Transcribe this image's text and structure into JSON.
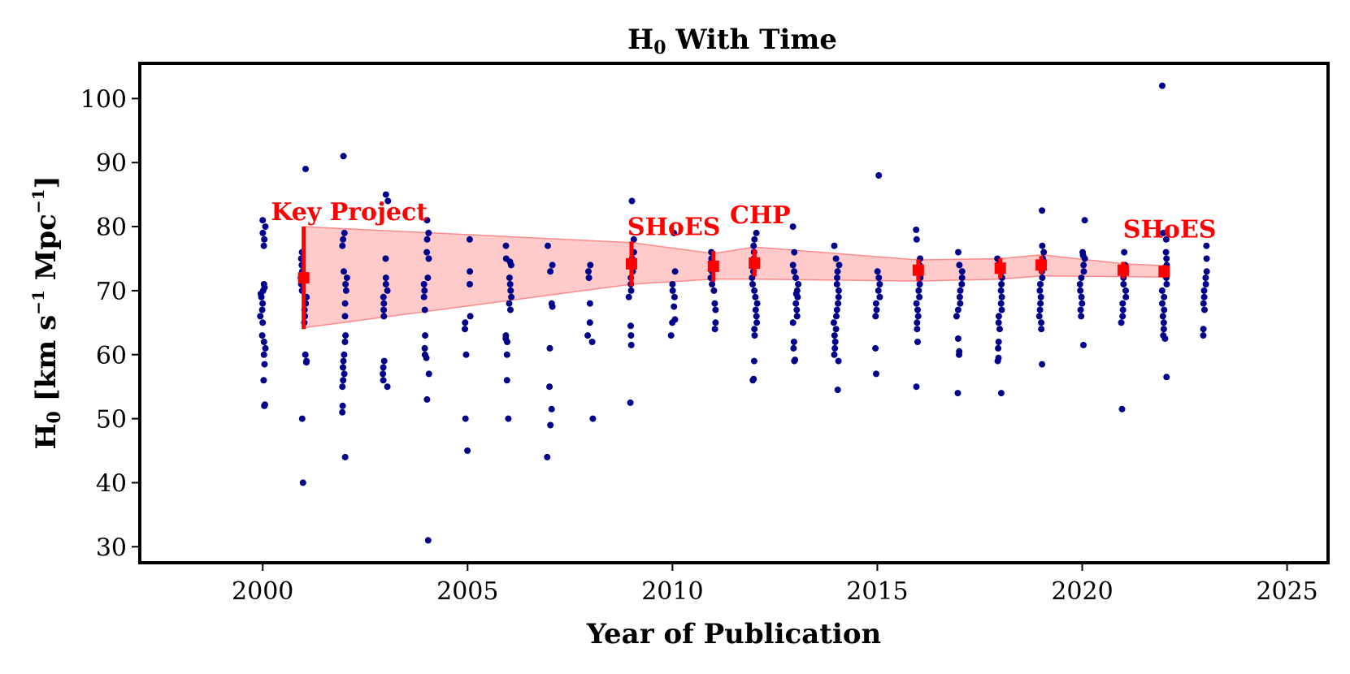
{
  "chart_data": {
    "type": "scatter",
    "title_main": "H",
    "title_sub": "0",
    "title_rest": " With Time",
    "xlabel": "Year of Publication",
    "ylabel_main": "H",
    "ylabel_sub": "0",
    "ylabel_rest": " [km s",
    "ylabel_exp1": "−1",
    "ylabel_mid": " Mpc",
    "ylabel_exp2": "−1",
    "ylabel_end": "]",
    "xlim": [
      1997,
      2026
    ],
    "ylim": [
      27.5,
      105.5
    ],
    "x_ticks": [
      2000,
      2005,
      2010,
      2015,
      2020,
      2025
    ],
    "x_tick_labels": [
      "2000",
      "2005",
      "2010",
      "2015",
      "2020",
      "2025"
    ],
    "y_ticks": [
      30,
      40,
      50,
      60,
      70,
      80,
      90,
      100
    ],
    "y_tick_labels": [
      "30",
      "40",
      "50",
      "60",
      "70",
      "80",
      "90",
      "100"
    ],
    "colors": {
      "points": "#00008b",
      "highlight": "#ff0000",
      "band": "#ffb3b3"
    },
    "band": {
      "x": [
        2001,
        2009,
        2011,
        2012,
        2016,
        2018,
        2019,
        2021,
        2022
      ],
      "upper": [
        80,
        77.5,
        75.8,
        76.8,
        74.8,
        75.0,
        75.6,
        74.2,
        73.9
      ],
      "lower": [
        64.2,
        71.0,
        71.8,
        71.8,
        71.5,
        71.8,
        72.3,
        72.2,
        72.1
      ]
    },
    "highlights": [
      {
        "x": 2001,
        "y": 72.0,
        "err": 8.0
      },
      {
        "x": 2009,
        "y": 74.2,
        "err": 3.5
      },
      {
        "x": 2011,
        "y": 73.8,
        "err": 2.4
      },
      {
        "x": 2012,
        "y": 74.3,
        "err": 2.1
      },
      {
        "x": 2016,
        "y": 73.2,
        "err": 1.7
      },
      {
        "x": 2018,
        "y": 73.5,
        "err": 1.6
      },
      {
        "x": 2019,
        "y": 74.0,
        "err": 1.4
      },
      {
        "x": 2021,
        "y": 73.2,
        "err": 1.3
      },
      {
        "x": 2022,
        "y": 73.0,
        "err": 1.0
      }
    ],
    "annotations": [
      {
        "text": "Key Project",
        "x": 2000.2,
        "y": 81.0
      },
      {
        "text": "SHoES",
        "x": 2008.9,
        "y": 78.7
      },
      {
        "text": "CHP",
        "x": 2011.4,
        "y": 80.5
      },
      {
        "text": "SHoES",
        "x": 2021.0,
        "y": 78.3
      }
    ],
    "points": [
      [
        2000,
        81
      ],
      [
        2000,
        80
      ],
      [
        2000,
        79
      ],
      [
        2000,
        78
      ],
      [
        2000,
        77
      ],
      [
        2000,
        71
      ],
      [
        2000,
        70.5
      ],
      [
        2000,
        70
      ],
      [
        2000,
        69.5
      ],
      [
        2000,
        69
      ],
      [
        2000,
        68
      ],
      [
        2000,
        67
      ],
      [
        2000,
        66
      ],
      [
        2000,
        65
      ],
      [
        2000,
        63
      ],
      [
        2000,
        62
      ],
      [
        2000,
        61
      ],
      [
        2000,
        60
      ],
      [
        2000,
        58.5
      ],
      [
        2000,
        56
      ],
      [
        2000,
        52.2
      ],
      [
        2000,
        52
      ],
      [
        2001,
        89
      ],
      [
        2001,
        76
      ],
      [
        2001,
        75
      ],
      [
        2001,
        74
      ],
      [
        2001,
        73
      ],
      [
        2001,
        72
      ],
      [
        2001,
        71
      ],
      [
        2001,
        70
      ],
      [
        2001,
        69
      ],
      [
        2001,
        68
      ],
      [
        2001,
        67
      ],
      [
        2001,
        66
      ],
      [
        2001,
        65
      ],
      [
        2001,
        60
      ],
      [
        2001,
        59
      ],
      [
        2001,
        58.8
      ],
      [
        2001,
        50
      ],
      [
        2001,
        40
      ],
      [
        2002,
        91
      ],
      [
        2002,
        79
      ],
      [
        2002,
        78
      ],
      [
        2002,
        77
      ],
      [
        2002,
        73
      ],
      [
        2002,
        72
      ],
      [
        2002,
        71
      ],
      [
        2002,
        70
      ],
      [
        2002,
        68
      ],
      [
        2002,
        66
      ],
      [
        2002,
        63
      ],
      [
        2002,
        62
      ],
      [
        2002,
        60
      ],
      [
        2002,
        59
      ],
      [
        2002,
        58
      ],
      [
        2002,
        57
      ],
      [
        2002,
        56
      ],
      [
        2002,
        55
      ],
      [
        2002,
        52
      ],
      [
        2002,
        51
      ],
      [
        2002,
        44
      ],
      [
        2003,
        85
      ],
      [
        2003,
        84
      ],
      [
        2003,
        75
      ],
      [
        2003,
        72
      ],
      [
        2003,
        71
      ],
      [
        2003,
        70
      ],
      [
        2003,
        69
      ],
      [
        2003,
        68
      ],
      [
        2003,
        67
      ],
      [
        2003,
        66
      ],
      [
        2003,
        59
      ],
      [
        2003,
        58
      ],
      [
        2003,
        57
      ],
      [
        2003,
        56
      ],
      [
        2003,
        55
      ],
      [
        2004,
        81
      ],
      [
        2004,
        79
      ],
      [
        2004,
        78
      ],
      [
        2004,
        76
      ],
      [
        2004,
        75
      ],
      [
        2004,
        72
      ],
      [
        2004,
        71
      ],
      [
        2004,
        70
      ],
      [
        2004,
        69
      ],
      [
        2004,
        67
      ],
      [
        2004,
        63
      ],
      [
        2004,
        61
      ],
      [
        2004,
        60
      ],
      [
        2004,
        59.5
      ],
      [
        2004,
        57
      ],
      [
        2004,
        53
      ],
      [
        2004,
        31
      ],
      [
        2005,
        78
      ],
      [
        2005,
        73
      ],
      [
        2005,
        71
      ],
      [
        2005,
        66
      ],
      [
        2005,
        65
      ],
      [
        2005,
        64
      ],
      [
        2005,
        60
      ],
      [
        2005,
        50
      ],
      [
        2005,
        45
      ],
      [
        2006,
        77
      ],
      [
        2006,
        75
      ],
      [
        2006,
        74.5
      ],
      [
        2006,
        74
      ],
      [
        2006,
        72
      ],
      [
        2006,
        71
      ],
      [
        2006,
        70
      ],
      [
        2006,
        69
      ],
      [
        2006,
        68
      ],
      [
        2006,
        67
      ],
      [
        2006,
        63
      ],
      [
        2006,
        62.5
      ],
      [
        2006,
        62
      ],
      [
        2006,
        60
      ],
      [
        2006,
        56
      ],
      [
        2006,
        50
      ],
      [
        2007,
        77
      ],
      [
        2007,
        74
      ],
      [
        2007,
        73
      ],
      [
        2007,
        68
      ],
      [
        2007,
        67.5
      ],
      [
        2007,
        61
      ],
      [
        2007,
        55
      ],
      [
        2007,
        51.5
      ],
      [
        2007,
        49
      ],
      [
        2007,
        44
      ],
      [
        2008,
        74
      ],
      [
        2008,
        73
      ],
      [
        2008,
        72
      ],
      [
        2008,
        68
      ],
      [
        2008,
        65
      ],
      [
        2008,
        63
      ],
      [
        2008,
        62
      ],
      [
        2008,
        50
      ],
      [
        2009,
        84
      ],
      [
        2009,
        78
      ],
      [
        2009,
        76
      ],
      [
        2009,
        75
      ],
      [
        2009,
        73
      ],
      [
        2009,
        72
      ],
      [
        2009,
        71
      ],
      [
        2009,
        70
      ],
      [
        2009,
        69
      ],
      [
        2009,
        64.5
      ],
      [
        2009,
        63
      ],
      [
        2009,
        61.5
      ],
      [
        2009,
        52.5
      ],
      [
        2010,
        79
      ],
      [
        2010,
        73
      ],
      [
        2010,
        71
      ],
      [
        2010,
        70
      ],
      [
        2010,
        69
      ],
      [
        2010,
        67.5
      ],
      [
        2010,
        65.5
      ],
      [
        2010,
        65
      ],
      [
        2010,
        63
      ],
      [
        2011,
        76
      ],
      [
        2011,
        75
      ],
      [
        2011,
        74
      ],
      [
        2011,
        73
      ],
      [
        2011,
        72
      ],
      [
        2011,
        71
      ],
      [
        2011,
        70
      ],
      [
        2011,
        68
      ],
      [
        2011,
        67
      ],
      [
        2011,
        65
      ],
      [
        2011,
        64
      ],
      [
        2012,
        79
      ],
      [
        2012,
        78
      ],
      [
        2012,
        77
      ],
      [
        2012,
        76
      ],
      [
        2012,
        75
      ],
      [
        2012,
        74
      ],
      [
        2012,
        73
      ],
      [
        2012,
        72
      ],
      [
        2012,
        71
      ],
      [
        2012,
        70
      ],
      [
        2012,
        69
      ],
      [
        2012,
        68
      ],
      [
        2012,
        67
      ],
      [
        2012,
        66
      ],
      [
        2012,
        65
      ],
      [
        2012,
        64
      ],
      [
        2012,
        63
      ],
      [
        2012,
        59
      ],
      [
        2012,
        56.2
      ],
      [
        2012,
        56
      ],
      [
        2013,
        80
      ],
      [
        2013,
        76
      ],
      [
        2013,
        74
      ],
      [
        2013,
        73
      ],
      [
        2013,
        72
      ],
      [
        2013,
        71
      ],
      [
        2013,
        70
      ],
      [
        2013,
        69.5
      ],
      [
        2013,
        69
      ],
      [
        2013,
        68
      ],
      [
        2013,
        67
      ],
      [
        2013,
        66
      ],
      [
        2013,
        65
      ],
      [
        2013,
        62
      ],
      [
        2013,
        61
      ],
      [
        2013,
        59.2
      ],
      [
        2013,
        59
      ],
      [
        2014,
        77
      ],
      [
        2014,
        75
      ],
      [
        2014,
        74
      ],
      [
        2014,
        73
      ],
      [
        2014,
        72
      ],
      [
        2014,
        71
      ],
      [
        2014,
        70
      ],
      [
        2014,
        69
      ],
      [
        2014,
        68
      ],
      [
        2014,
        67
      ],
      [
        2014,
        66
      ],
      [
        2014,
        65
      ],
      [
        2014,
        64
      ],
      [
        2014,
        63
      ],
      [
        2014,
        62
      ],
      [
        2014,
        61
      ],
      [
        2014,
        60
      ],
      [
        2014,
        59
      ],
      [
        2014,
        54.5
      ],
      [
        2015,
        88
      ],
      [
        2015,
        73
      ],
      [
        2015,
        72
      ],
      [
        2015,
        71
      ],
      [
        2015,
        70
      ],
      [
        2015,
        69
      ],
      [
        2015,
        68
      ],
      [
        2015,
        67
      ],
      [
        2015,
        66
      ],
      [
        2015,
        61
      ],
      [
        2015,
        57
      ],
      [
        2016,
        79.5
      ],
      [
        2016,
        78
      ],
      [
        2016,
        75
      ],
      [
        2016,
        74
      ],
      [
        2016,
        73
      ],
      [
        2016,
        72
      ],
      [
        2016,
        71
      ],
      [
        2016,
        70
      ],
      [
        2016,
        69
      ],
      [
        2016,
        68
      ],
      [
        2016,
        67
      ],
      [
        2016,
        66
      ],
      [
        2016,
        65
      ],
      [
        2016,
        64
      ],
      [
        2016,
        62
      ],
      [
        2016,
        55
      ],
      [
        2017,
        76
      ],
      [
        2017,
        74
      ],
      [
        2017,
        73
      ],
      [
        2017,
        72
      ],
      [
        2017,
        71
      ],
      [
        2017,
        70
      ],
      [
        2017,
        69
      ],
      [
        2017,
        68
      ],
      [
        2017,
        67
      ],
      [
        2017,
        66
      ],
      [
        2017,
        62.5
      ],
      [
        2017,
        60.5
      ],
      [
        2017,
        60
      ],
      [
        2017,
        54
      ],
      [
        2018,
        75
      ],
      [
        2018,
        74
      ],
      [
        2018,
        73
      ],
      [
        2018,
        72
      ],
      [
        2018,
        71
      ],
      [
        2018,
        70
      ],
      [
        2018,
        69
      ],
      [
        2018,
        68
      ],
      [
        2018,
        67
      ],
      [
        2018,
        66
      ],
      [
        2018,
        65
      ],
      [
        2018,
        64
      ],
      [
        2018,
        62
      ],
      [
        2018,
        61
      ],
      [
        2018,
        59.5
      ],
      [
        2018,
        59
      ],
      [
        2018,
        54
      ],
      [
        2019,
        82.5
      ],
      [
        2019,
        77
      ],
      [
        2019,
        76
      ],
      [
        2019,
        75
      ],
      [
        2019,
        74
      ],
      [
        2019,
        73
      ],
      [
        2019,
        72
      ],
      [
        2019,
        71
      ],
      [
        2019,
        70
      ],
      [
        2019,
        69
      ],
      [
        2019,
        68
      ],
      [
        2019,
        67
      ],
      [
        2019,
        66
      ],
      [
        2019,
        65
      ],
      [
        2019,
        64
      ],
      [
        2019,
        58.5
      ],
      [
        2020,
        81
      ],
      [
        2020,
        76
      ],
      [
        2020,
        75.5
      ],
      [
        2020,
        75
      ],
      [
        2020,
        74
      ],
      [
        2020,
        73
      ],
      [
        2020,
        72
      ],
      [
        2020,
        71
      ],
      [
        2020,
        70
      ],
      [
        2020,
        69
      ],
      [
        2020,
        68
      ],
      [
        2020,
        67
      ],
      [
        2020,
        66
      ],
      [
        2020,
        61.5
      ],
      [
        2021,
        76
      ],
      [
        2021,
        74
      ],
      [
        2021,
        73
      ],
      [
        2021,
        72
      ],
      [
        2021,
        71
      ],
      [
        2021,
        70
      ],
      [
        2021,
        69
      ],
      [
        2021,
        68
      ],
      [
        2021,
        67
      ],
      [
        2021,
        66
      ],
      [
        2021,
        65
      ],
      [
        2021,
        51.5
      ],
      [
        2022,
        102
      ],
      [
        2022,
        79
      ],
      [
        2022,
        78
      ],
      [
        2022,
        76
      ],
      [
        2022,
        75
      ],
      [
        2022,
        74
      ],
      [
        2022,
        73
      ],
      [
        2022,
        72
      ],
      [
        2022,
        71
      ],
      [
        2022,
        70
      ],
      [
        2022,
        69
      ],
      [
        2022,
        68
      ],
      [
        2022,
        67
      ],
      [
        2022,
        66
      ],
      [
        2022,
        65
      ],
      [
        2022,
        64
      ],
      [
        2022,
        63
      ],
      [
        2022,
        62.5
      ],
      [
        2022,
        56.5
      ],
      [
        2023,
        77
      ],
      [
        2023,
        75
      ],
      [
        2023,
        73
      ],
      [
        2023,
        72
      ],
      [
        2023,
        71
      ],
      [
        2023,
        70
      ],
      [
        2023,
        69
      ],
      [
        2023,
        68
      ],
      [
        2023,
        67
      ],
      [
        2023,
        64
      ],
      [
        2023,
        63
      ]
    ]
  }
}
